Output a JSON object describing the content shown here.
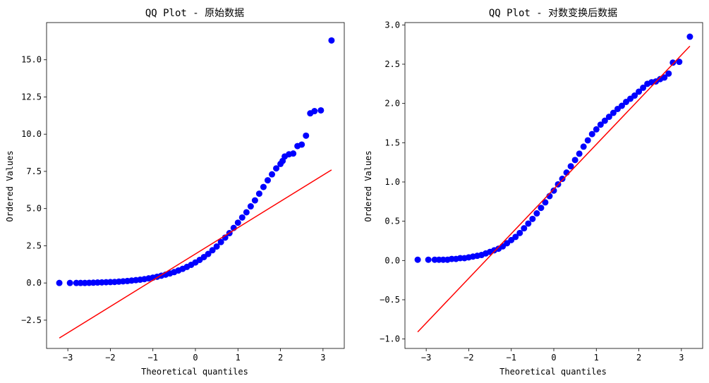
{
  "figure": {
    "background": "#ffffff"
  },
  "chart_data": [
    {
      "type": "scatter",
      "title": "QQ Plot - 原始数据",
      "xlabel": "Theoretical quantiles",
      "ylabel": "Ordered Values",
      "xlim": [
        -3.5,
        3.5
      ],
      "ylim": [
        -4.4,
        17.5
      ],
      "xticks": [
        -3,
        -2,
        -1,
        0,
        1,
        2,
        3
      ],
      "xtick_labels": [
        "−3",
        "−2",
        "−1",
        "0",
        "1",
        "2",
        "3"
      ],
      "yticks": [
        -2.5,
        0.0,
        2.5,
        5.0,
        7.5,
        10.0,
        12.5,
        15.0
      ],
      "ytick_labels": [
        "−2.5",
        "0.0",
        "2.5",
        "5.0",
        "7.5",
        "10.0",
        "12.5",
        "15.0"
      ],
      "grid": false,
      "marker_color": "#0000ff",
      "line_color": "#ff0000",
      "fit_line": {
        "x": [
          -3.2,
          3.2
        ],
        "y": [
          -3.7,
          7.6
        ]
      },
      "series": [
        {
          "x": [
            -3.2,
            -2.95,
            -2.8,
            -2.7,
            -2.6,
            -2.5,
            -2.4,
            -2.3,
            -2.2,
            -2.1,
            -2.0,
            -1.9,
            -1.8,
            -1.7,
            -1.6,
            -1.5,
            -1.4,
            -1.3,
            -1.2,
            -1.1,
            -1.0,
            -0.9,
            -0.8,
            -0.7,
            -0.6,
            -0.5,
            -0.4,
            -0.3,
            -0.2,
            -0.1,
            0.0,
            0.1,
            0.2,
            0.3,
            0.4,
            0.5,
            0.6,
            0.7,
            0.8,
            0.9,
            1.0,
            1.1,
            1.2,
            1.3,
            1.4,
            1.5,
            1.6,
            1.7,
            1.8,
            1.9,
            2.0,
            2.05,
            2.1,
            2.2,
            2.3,
            2.4,
            2.5,
            2.6,
            2.7,
            2.8,
            2.95,
            3.2
          ],
          "y": [
            0.0,
            0.0,
            0.0,
            0.0,
            0.0,
            0.01,
            0.02,
            0.03,
            0.04,
            0.05,
            0.06,
            0.07,
            0.09,
            0.11,
            0.13,
            0.16,
            0.19,
            0.22,
            0.26,
            0.31,
            0.36,
            0.42,
            0.49,
            0.56,
            0.64,
            0.73,
            0.84,
            0.95,
            1.08,
            1.22,
            1.38,
            1.55,
            1.74,
            1.95,
            2.2,
            2.45,
            2.75,
            3.05,
            3.35,
            3.7,
            4.05,
            4.4,
            4.75,
            5.15,
            5.55,
            6.0,
            6.45,
            6.9,
            7.3,
            7.7,
            8.0,
            8.2,
            8.5,
            8.65,
            8.7,
            9.2,
            9.3,
            9.9,
            11.4,
            11.55,
            11.6,
            16.3
          ]
        }
      ]
    },
    {
      "type": "scatter",
      "title": "QQ Plot - 对数变换后数据",
      "xlabel": "Theoretical quantiles",
      "ylabel": "Ordered Values",
      "xlim": [
        -3.5,
        3.5
      ],
      "ylim": [
        -1.12,
        3.03
      ],
      "xticks": [
        -3,
        -2,
        -1,
        0,
        1,
        2,
        3
      ],
      "xtick_labels": [
        "−3",
        "−2",
        "−1",
        "0",
        "1",
        "2",
        "3"
      ],
      "yticks": [
        -1.0,
        -0.5,
        0.0,
        0.5,
        1.0,
        1.5,
        2.0,
        2.5,
        3.0
      ],
      "ytick_labels": [
        "−1.0",
        "−0.5",
        "0.0",
        "0.5",
        "1.0",
        "1.5",
        "2.0",
        "2.5",
        "3.0"
      ],
      "grid": false,
      "marker_color": "#0000ff",
      "line_color": "#ff0000",
      "fit_line": {
        "x": [
          -3.2,
          3.2
        ],
        "y": [
          -0.91,
          2.73
        ]
      },
      "series": [
        {
          "x": [
            -3.2,
            -2.95,
            -2.8,
            -2.7,
            -2.6,
            -2.5,
            -2.4,
            -2.3,
            -2.2,
            -2.1,
            -2.0,
            -1.9,
            -1.8,
            -1.7,
            -1.6,
            -1.5,
            -1.4,
            -1.3,
            -1.2,
            -1.1,
            -1.0,
            -0.9,
            -0.8,
            -0.7,
            -0.6,
            -0.5,
            -0.4,
            -0.3,
            -0.2,
            -0.1,
            0.0,
            0.1,
            0.2,
            0.3,
            0.4,
            0.5,
            0.6,
            0.7,
            0.8,
            0.9,
            1.0,
            1.1,
            1.2,
            1.3,
            1.4,
            1.5,
            1.6,
            1.7,
            1.8,
            1.9,
            2.0,
            2.1,
            2.2,
            2.3,
            2.4,
            2.5,
            2.6,
            2.7,
            2.8,
            2.95,
            3.2
          ],
          "y": [
            0.01,
            0.01,
            0.01,
            0.01,
            0.01,
            0.01,
            0.02,
            0.02,
            0.03,
            0.03,
            0.04,
            0.05,
            0.06,
            0.07,
            0.09,
            0.11,
            0.13,
            0.15,
            0.18,
            0.22,
            0.26,
            0.3,
            0.35,
            0.41,
            0.47,
            0.53,
            0.6,
            0.67,
            0.74,
            0.82,
            0.89,
            0.97,
            1.04,
            1.12,
            1.2,
            1.28,
            1.36,
            1.45,
            1.53,
            1.61,
            1.67,
            1.73,
            1.78,
            1.83,
            1.88,
            1.93,
            1.97,
            2.02,
            2.06,
            2.1,
            2.15,
            2.2,
            2.25,
            2.27,
            2.28,
            2.31,
            2.33,
            2.38,
            2.52,
            2.53,
            2.85
          ]
        }
      ]
    }
  ]
}
